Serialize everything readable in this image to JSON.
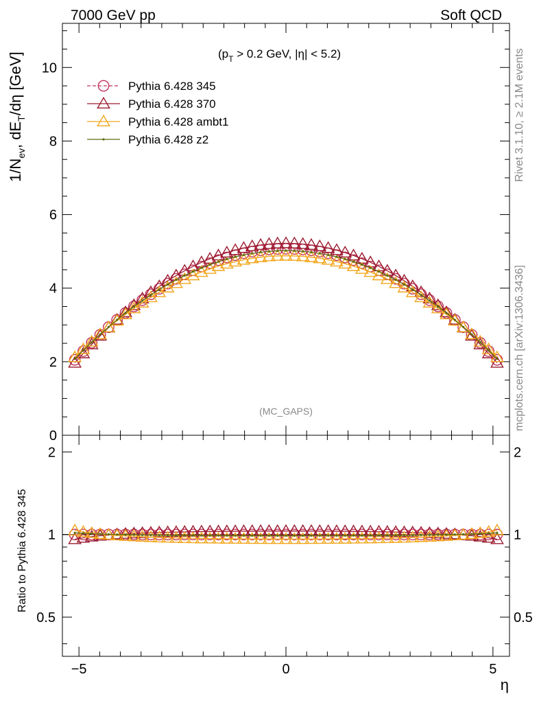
{
  "header": {
    "left": "7000 GeV pp",
    "right": "Soft QCD"
  },
  "cut_label": {
    "prefix": "(p",
    "sub": "T",
    "rest": " > 0.2 GeV, |η| < 5.2)"
  },
  "analysis_tag": "(MC_GAPS)",
  "side_labels": {
    "rivet": "Rivet 3.1.10, ≥ 2.1M events",
    "mcplots": "mcplots.cern.ch [arXiv:1306.3436]"
  },
  "ylabel_main": {
    "a": "1/N",
    "a_sub": "ev",
    "b": ", dE",
    "b_sub": "T",
    "c": "/dη [GeV]"
  },
  "ylabel_ratio": "Ratio to Pythia 6.428 345",
  "xlabel": "η",
  "colors": {
    "p345": "#c0305a",
    "p370": "#9a1b2f",
    "ambt1": "#f2a61c",
    "z2": "#5c6b12"
  },
  "chart_data": {
    "type": "line",
    "title": "",
    "xlabel": "η",
    "xlim": [
      -5.4,
      5.4
    ],
    "main_ylim": [
      0,
      11.2
    ],
    "ratio_ylim": [
      0.36,
      2.3
    ],
    "main_yticks": [
      0,
      2,
      4,
      6,
      8,
      10
    ],
    "ratio_yticks": [
      0.5,
      1,
      2
    ],
    "xticks": [
      -5,
      0,
      5
    ],
    "grid": false,
    "legend_position": "top-left",
    "eta_min": -5.1,
    "eta_max": 5.1,
    "n_points": 51,
    "series": [
      {
        "name": "Pythia 6.428 345",
        "color": "#c0305a",
        "marker": "circle",
        "dashed": true,
        "edge_value": 2.05,
        "center_value": 5.07
      },
      {
        "name": "Pythia 6.428 370",
        "color": "#9a1b2f",
        "marker": "triangle",
        "dashed": false,
        "edge_value": 1.97,
        "center_value": 5.22
      },
      {
        "name": "Pythia 6.428 ambt1",
        "color": "#f2a61c",
        "marker": "triangle",
        "dashed": false,
        "edge_value": 2.12,
        "center_value": 4.88
      },
      {
        "name": "Pythia 6.428 z2",
        "color": "#5c6b12",
        "marker": "dot",
        "dashed": false,
        "edge_value": 2.08,
        "center_value": 5.02
      }
    ]
  }
}
